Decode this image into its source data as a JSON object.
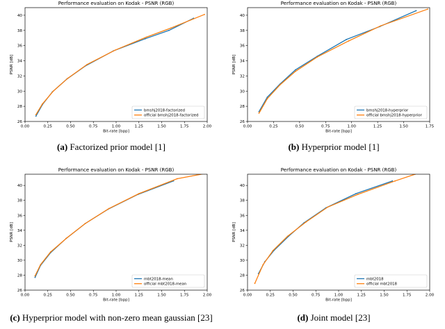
{
  "colors": {
    "ours": "#1f77b4",
    "official": "#ff7f0e"
  },
  "panels": [
    {
      "caption_label": "(a)",
      "caption_text": "Factorized prior model [1]",
      "chart_data": {
        "type": "line",
        "title": "Performance evaluation on Kodak - PSNR (RGB)",
        "xlabel": "Bit-rate [bpp]",
        "ylabel": "PSNR [dB]",
        "xlim": [
          0.0,
          2.0
        ],
        "ylim": [
          26,
          41
        ],
        "xticks": [
          "0.00",
          "0.25",
          "0.50",
          "0.75",
          "1.00",
          "1.25",
          "1.50",
          "1.75",
          "2.00"
        ],
        "yticks": [
          "26",
          "28",
          "30",
          "32",
          "34",
          "36",
          "38",
          "40"
        ],
        "legend_position": "lower-right",
        "series": [
          {
            "name": "bmshj2018-factorized",
            "color": "#1f77b4",
            "x": [
              0.12,
              0.19,
              0.3,
              0.46,
              0.66,
              0.97,
              1.32,
              1.58,
              1.85
            ],
            "y": [
              26.7,
              28.2,
              29.9,
              31.6,
              33.3,
              35.3,
              36.9,
              38.0,
              39.6
            ]
          },
          {
            "name": "official bmshj2018-factorized",
            "color": "#ff7f0e",
            "x": [
              0.12,
              0.19,
              0.31,
              0.47,
              0.68,
              0.99,
              1.33,
              1.6,
              1.97
            ],
            "y": [
              26.9,
              28.3,
              30.0,
              31.7,
              33.5,
              35.4,
              37.1,
              38.3,
              40.1
            ]
          }
        ]
      }
    },
    {
      "caption_label": "(b)",
      "caption_text": "Hyperprior model [1]",
      "chart_data": {
        "type": "line",
        "title": "Performance evaluation on Kodak - PSNR (RGB)",
        "xlabel": "Bit-rate [bpp]",
        "ylabel": "PSNR [dB]",
        "xlim": [
          0.0,
          1.75
        ],
        "ylim": [
          26,
          41
        ],
        "xticks": [
          "0.00",
          "0.25",
          "0.50",
          "0.75",
          "1.00",
          "1.25",
          "1.50",
          "1.75"
        ],
        "yticks": [
          "26",
          "28",
          "30",
          "32",
          "34",
          "36",
          "38",
          "40"
        ],
        "legend_position": "lower-right",
        "series": [
          {
            "name": "bmshj2018-hyperprior",
            "color": "#1f77b4",
            "x": [
              0.11,
              0.19,
              0.31,
              0.46,
              0.67,
              0.95,
              1.27,
              1.62
            ],
            "y": [
              27.3,
              29.2,
              30.9,
              32.8,
              34.6,
              36.8,
              38.5,
              40.6
            ]
          },
          {
            "name": "official bmshj2018-hyperprior",
            "color": "#ff7f0e",
            "x": [
              0.11,
              0.19,
              0.31,
              0.46,
              0.67,
              0.97,
              1.28,
              1.73
            ],
            "y": [
              27.1,
              29.0,
              30.8,
              32.6,
              34.5,
              36.6,
              38.6,
              40.8
            ]
          }
        ]
      }
    },
    {
      "caption_label": "(c)",
      "caption_text": "Hyperprior model with non-zero mean gaussian [23]",
      "chart_data": {
        "type": "line",
        "title": "Performance evaluation on Kodak - PSNR (RGB)",
        "xlabel": "Bit-rate [bpp]",
        "ylabel": "PSNR [dB]",
        "xlim": [
          0.0,
          2.0
        ],
        "ylim": [
          26,
          41.5
        ],
        "xticks": [
          "0.00",
          "0.25",
          "0.50",
          "0.75",
          "1.00",
          "1.25",
          "1.50",
          "1.75",
          "2.00"
        ],
        "yticks": [
          "26",
          "28",
          "30",
          "32",
          "34",
          "36",
          "38",
          "40"
        ],
        "legend_position": "lower-right",
        "series": [
          {
            "name": "mbt2018-mean",
            "color": "#1f77b4",
            "x": [
              0.11,
              0.17,
              0.28,
              0.45,
              0.66,
              0.91,
              1.24,
              1.63
            ],
            "y": [
              27.7,
              29.3,
              31.0,
              32.9,
              34.9,
              36.8,
              38.8,
              40.6
            ]
          },
          {
            "name": "official mbt2018-mean",
            "color": "#ff7f0e",
            "x": [
              0.11,
              0.17,
              0.28,
              0.46,
              0.66,
              0.92,
              1.25,
              1.67,
              1.98
            ],
            "y": [
              27.9,
              29.4,
              31.1,
              33.0,
              34.9,
              36.9,
              38.9,
              40.9,
              41.6
            ]
          }
        ]
      }
    },
    {
      "caption_label": "(d)",
      "caption_text": "Joint model [23]",
      "chart_data": {
        "type": "line",
        "title": "Performance evaluation on Kodak - PSNR (RGB)",
        "xlabel": "Bit-rate [bpp]",
        "ylabel": "PSNR [dB]",
        "xlim": [
          0.0,
          2.0
        ],
        "ylim": [
          26,
          41.5
        ],
        "xticks": [
          "0.00",
          "0.25",
          "0.50",
          "0.75",
          "1.00",
          "1.25",
          "1.50",
          "1.75",
          "2.00"
        ],
        "yticks": [
          "26",
          "28",
          "30",
          "32",
          "34",
          "36",
          "38",
          "40"
        ],
        "legend_position": "lower-right",
        "series": [
          {
            "name": "mbt2018",
            "color": "#1f77b4",
            "x": [
              0.12,
              0.19,
              0.29,
              0.45,
              0.62,
              0.86,
              1.19,
              1.59
            ],
            "y": [
              28.2,
              29.8,
              31.3,
              33.2,
              35.0,
              37.0,
              38.9,
              40.6
            ]
          },
          {
            "name": "official mbt2018",
            "color": "#ff7f0e",
            "x": [
              0.08,
              0.17,
              0.28,
              0.44,
              0.64,
              0.88,
              1.21,
              1.62,
              1.84
            ],
            "y": [
              26.9,
              29.4,
              31.3,
              33.2,
              35.1,
              37.1,
              38.8,
              40.6,
              41.5
            ]
          }
        ]
      }
    }
  ]
}
